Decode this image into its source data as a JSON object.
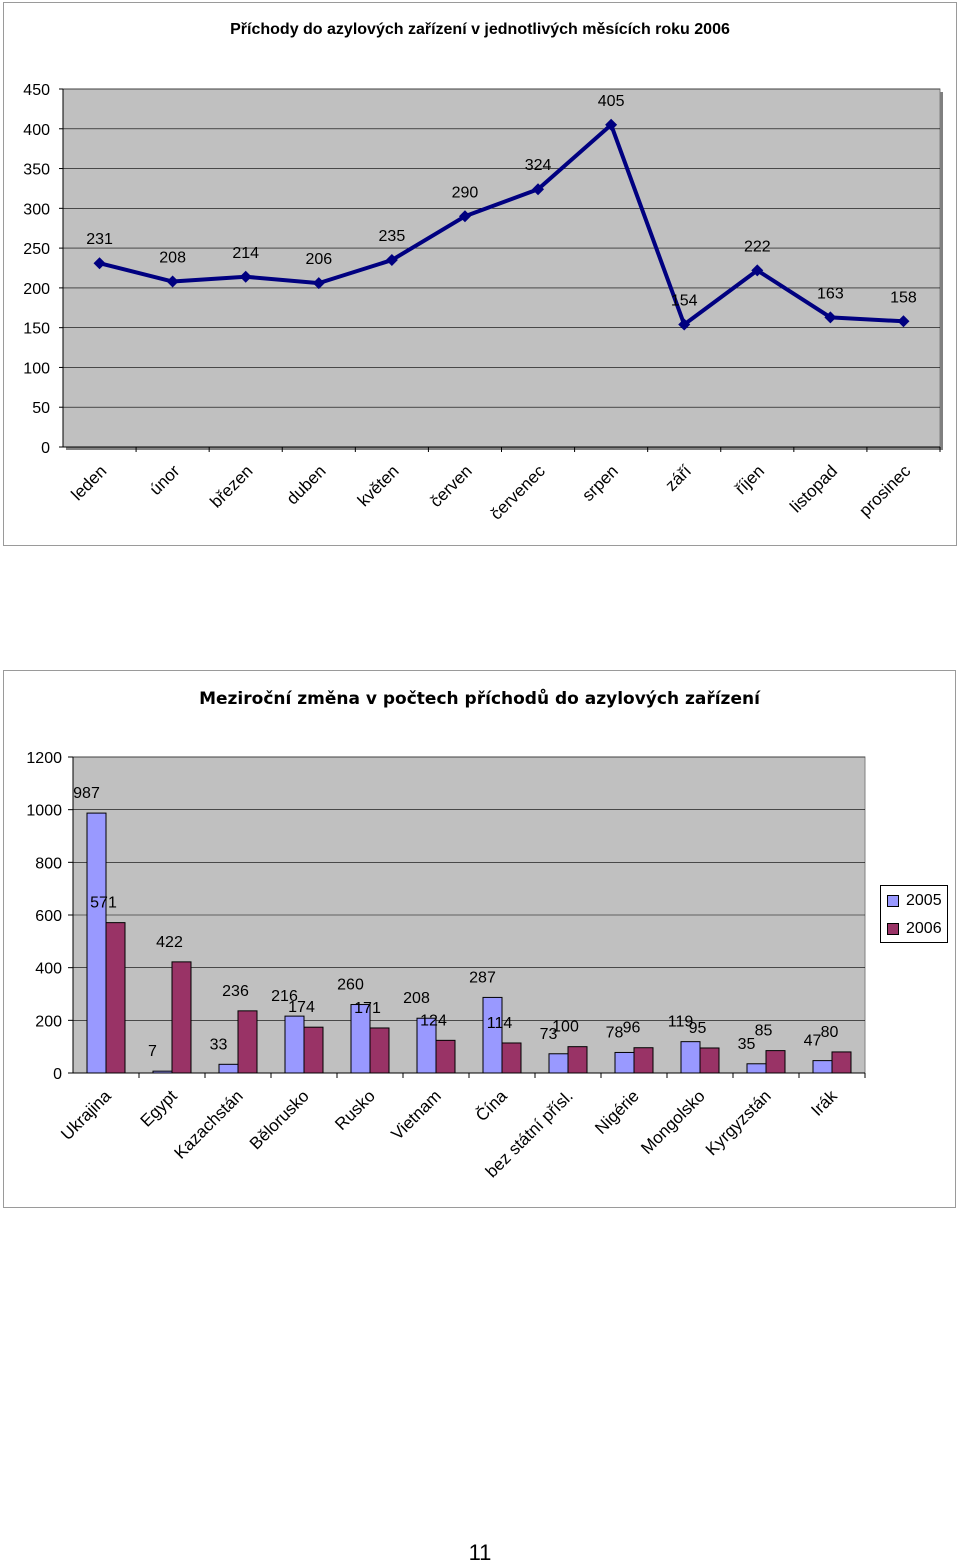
{
  "page": {
    "page_number": "11"
  },
  "chart_data": [
    {
      "type": "line",
      "title": "Příchody do azylových zařízení v jednotlivých měsících roku 2006",
      "categories": [
        "leden",
        "únor",
        "březen",
        "duben",
        "květen",
        "červen",
        "červenec",
        "srpen",
        "září",
        "říjen",
        "listopad",
        "prosinec"
      ],
      "series": [
        {
          "values": [
            231,
            208,
            214,
            206,
            235,
            290,
            324,
            405,
            154,
            222,
            163,
            158
          ],
          "color": "#000080"
        }
      ],
      "ylim": [
        0,
        450
      ],
      "yticks": [
        0,
        50,
        100,
        150,
        200,
        250,
        300,
        350,
        400,
        450
      ],
      "xlabel": "",
      "ylabel": "",
      "grid": true,
      "plot_background": "#c0c0c0"
    },
    {
      "type": "bar",
      "title": "Meziroční změna v počtech příchodů do azylových zařízení",
      "categories": [
        "Ukrajina",
        "Egypt",
        "Kazachstán",
        "Bělorusko",
        "Rusko",
        "Vietnam",
        "Čína",
        "bez státní přísl.",
        "Nigérie",
        "Mongolsko",
        "Kyrgyzstán",
        "Irák"
      ],
      "series": [
        {
          "name": "2005",
          "values": [
            987,
            7,
            33,
            216,
            260,
            208,
            287,
            73,
            78,
            119,
            35,
            47
          ],
          "color": "#9999ff"
        },
        {
          "name": "2006",
          "values": [
            571,
            422,
            236,
            174,
            171,
            124,
            114,
            100,
            96,
            95,
            85,
            80
          ],
          "color": "#993366"
        }
      ],
      "ylim": [
        0,
        1200
      ],
      "yticks": [
        0,
        200,
        400,
        600,
        800,
        1000,
        1200
      ],
      "xlabel": "",
      "ylabel": "",
      "grid": true,
      "legend": "right",
      "plot_background": "#c0c0c0"
    }
  ]
}
